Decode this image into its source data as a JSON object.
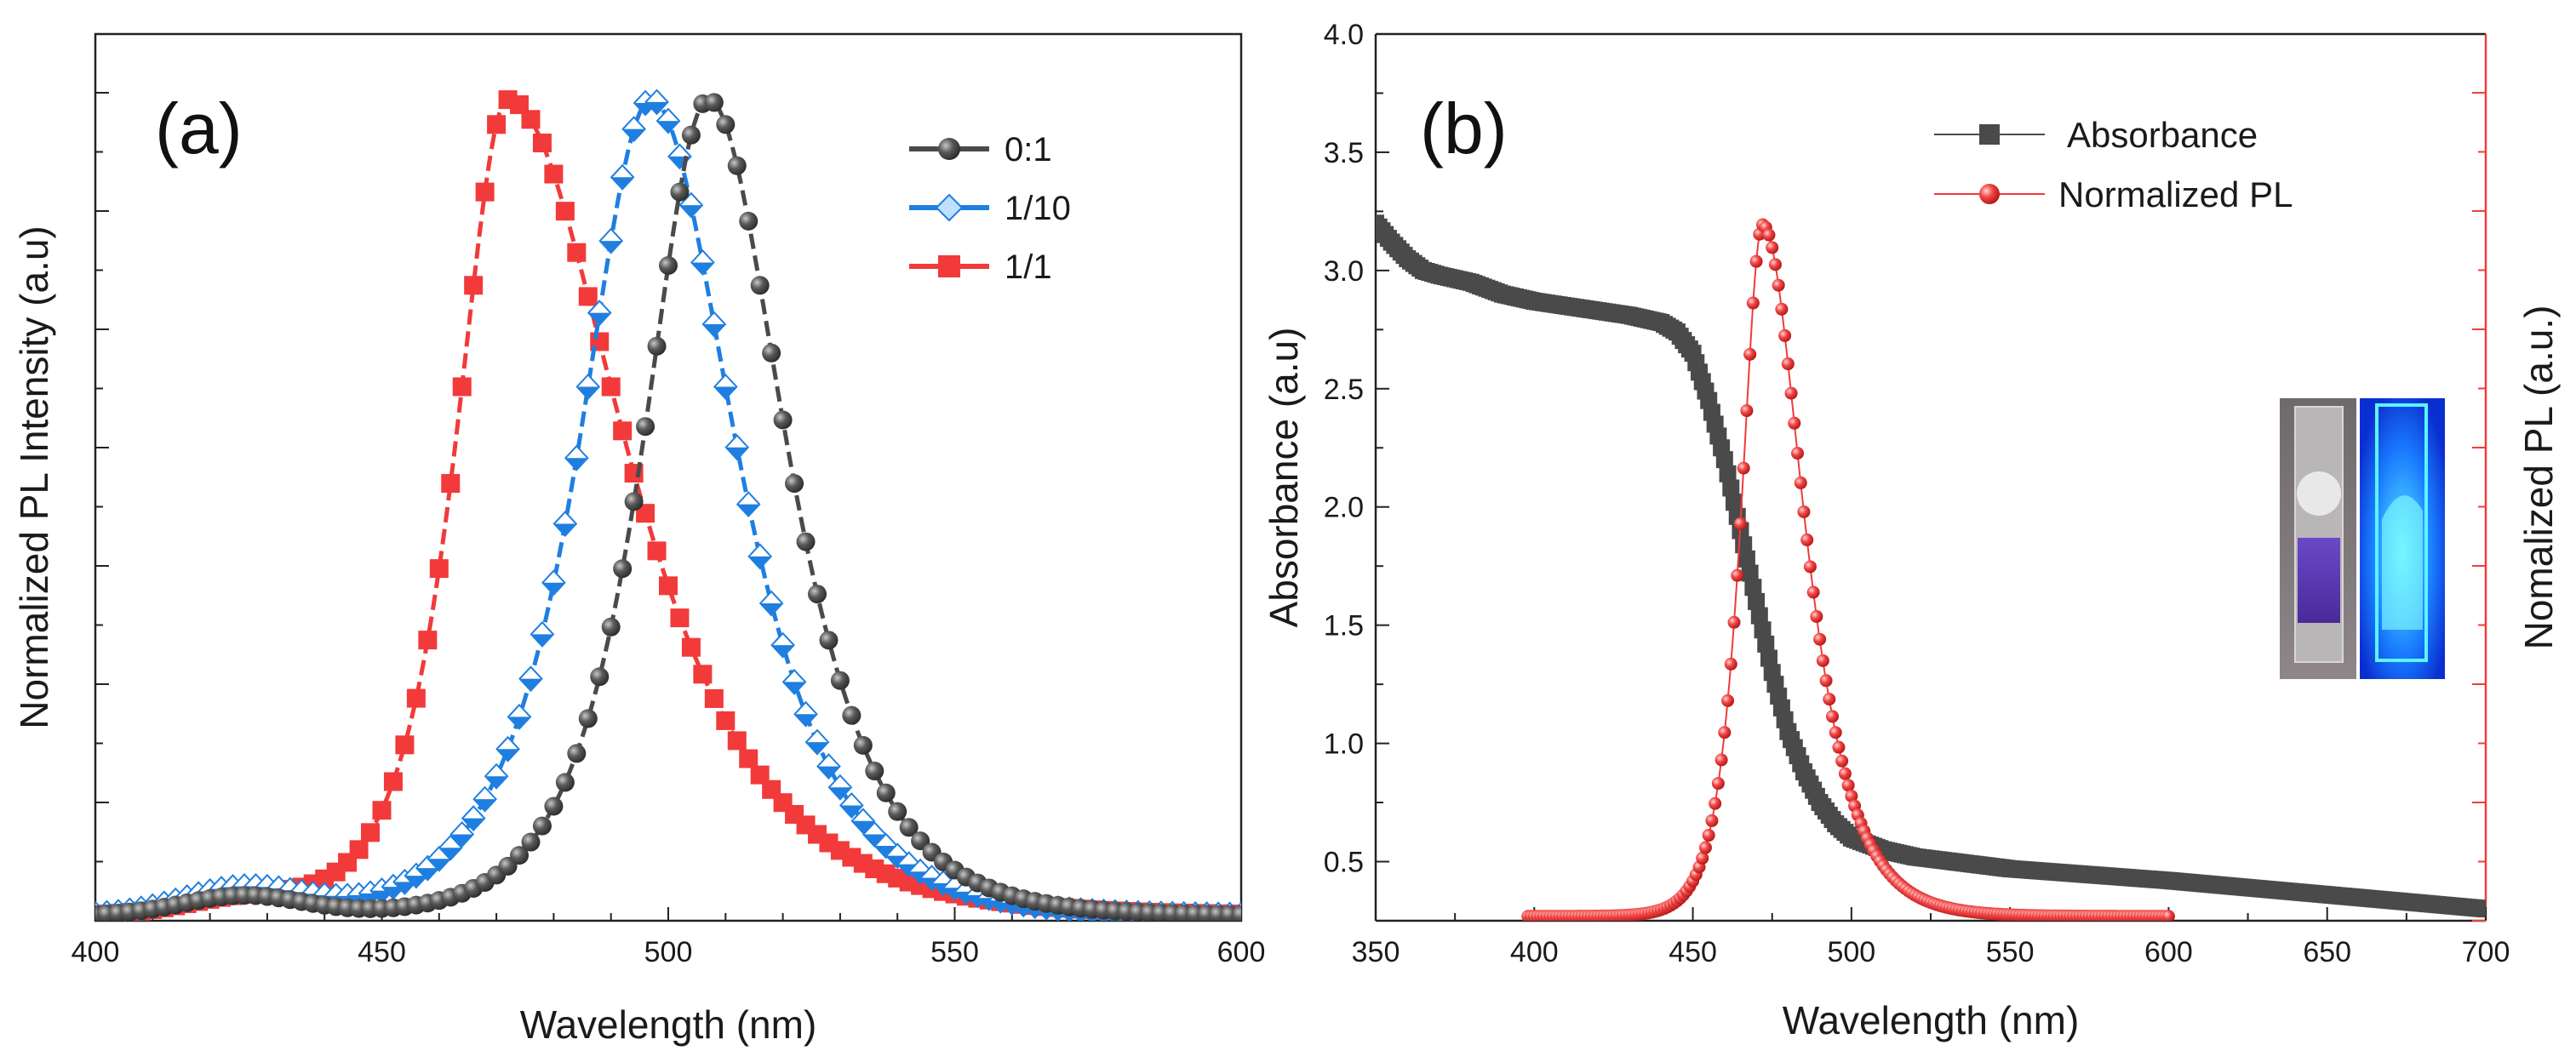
{
  "colors": {
    "black_series": "#4a4a4a",
    "blue_series": "#1f7fe0",
    "red_series": "#f23a3a",
    "axis": "#222222",
    "right_axis": "#f03c3c"
  },
  "chart_data": [
    {
      "panel": "(a)",
      "type": "scatter",
      "title": "",
      "xlabel": "Wavelength (nm)",
      "ylabel": "Normalized PL Intensity (a.u)",
      "xlim": [
        400,
        600
      ],
      "ylim": [
        0,
        1.0
      ],
      "xticks": [
        400,
        450,
        500,
        550,
        600
      ],
      "y_tick_labels": "none",
      "legend": {
        "position": "top-right",
        "entries": [
          "0:1",
          "1/10",
          "1/1"
        ]
      },
      "series": [
        {
          "name": "0:1",
          "marker": "sphere",
          "color": "#4a4a4a",
          "peak": 507,
          "peak_value": 0.92,
          "left_width": 10,
          "right_width": 12,
          "baseline": 0.006,
          "bump": {
            "center": 426,
            "amplitude": 0.022,
            "width": 15
          }
        },
        {
          "name": "1/10",
          "marker": "diamond",
          "color": "#1f7fe0",
          "peak": 497,
          "peak_value": 0.92,
          "left_width": 11,
          "right_width": 13,
          "baseline": 0.006,
          "bump": {
            "center": 426,
            "amplitude": 0.03,
            "width": 15
          }
        },
        {
          "name": "1/1",
          "marker": "square",
          "color": "#f23a3a",
          "peak": 472,
          "peak_value": 0.92,
          "left_width": 8,
          "right_width": 18,
          "baseline": 0.006,
          "bump": {
            "center": 426,
            "amplitude": 0.018,
            "width": 15
          }
        }
      ]
    },
    {
      "panel": "(b)",
      "type": "scatter",
      "title": "",
      "xlabel": "Wavelength (nm)",
      "ylabel": "Absorbance (a.u)",
      "ylabel_right": "Nomalized PL (a.u.)",
      "xlim": [
        350,
        700
      ],
      "ylim": [
        0.25,
        4.0
      ],
      "xticks": [
        350,
        400,
        450,
        500,
        550,
        600,
        650,
        700
      ],
      "yticks": [
        "0.5",
        "1.0",
        "1.5",
        "2.0",
        "2.5",
        "3.0",
        "3.5",
        "4.0"
      ],
      "right_ylim": [
        0,
        1.0
      ],
      "legend": {
        "position": "top-right",
        "entries": [
          "Absorbance",
          "Normalized PL"
        ]
      },
      "inset": "photo of two cuvettes: purple solution under ambient light and bright blue emission under UV light",
      "series": [
        {
          "name": "Absorbance",
          "marker": "square",
          "color": "#4a4a4a",
          "axis": "left",
          "x": [
            350,
            355,
            360,
            365,
            370,
            380,
            390,
            400,
            410,
            420,
            430,
            440,
            445,
            450,
            455,
            460,
            465,
            470,
            475,
            480,
            485,
            490,
            495,
            500,
            510,
            520,
            550,
            600,
            650,
            700
          ],
          "y": [
            3.2,
            3.12,
            3.05,
            3.0,
            2.98,
            2.95,
            2.9,
            2.87,
            2.85,
            2.83,
            2.81,
            2.78,
            2.74,
            2.65,
            2.45,
            2.2,
            1.9,
            1.6,
            1.3,
            1.05,
            0.88,
            0.75,
            0.66,
            0.6,
            0.55,
            0.52,
            0.47,
            0.42,
            0.36,
            0.3
          ]
        },
        {
          "name": "Normalized PL",
          "marker": "sphere",
          "color": "#f23a3a",
          "axis": "right",
          "x_range": [
            398,
            600
          ],
          "peak": 472,
          "peak_value": 0.78,
          "left_width": 6,
          "right_width": 11.5,
          "baseline": 0.005
        }
      ]
    }
  ]
}
